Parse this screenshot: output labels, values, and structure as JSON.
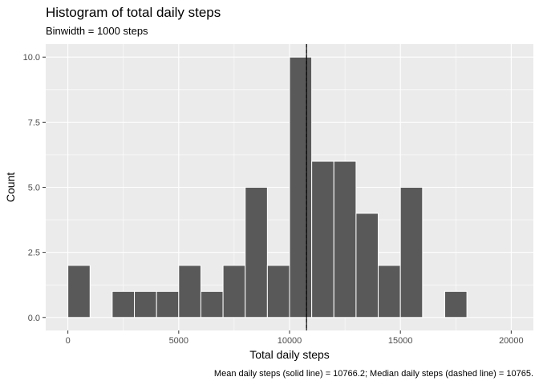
{
  "chart_data": {
    "type": "histogram",
    "title": "Histogram of total daily steps",
    "subtitle": "Binwidth = 1000 steps",
    "xlabel": "Total daily steps",
    "ylabel": "Count",
    "caption": "Mean daily steps (solid line) = 10766.2; Median daily steps (dashed line) = 10765.",
    "binwidth": 1000,
    "xlim": [
      -1000,
      21000
    ],
    "ylim": [
      -0.5,
      10.5
    ],
    "x_ticks": [
      0,
      5000,
      10000,
      15000,
      20000
    ],
    "x_tick_labels": [
      "0",
      "5000",
      "10000",
      "15000",
      "20000"
    ],
    "y_ticks": [
      0,
      2.5,
      5,
      7.5,
      10
    ],
    "y_tick_labels": [
      "0.0",
      "2.5",
      "5.0",
      "7.5",
      "10.0"
    ],
    "bins": [
      {
        "start": 0,
        "end": 1000,
        "count": 2
      },
      {
        "start": 1000,
        "end": 2000,
        "count": 0
      },
      {
        "start": 2000,
        "end": 3000,
        "count": 1
      },
      {
        "start": 3000,
        "end": 4000,
        "count": 1
      },
      {
        "start": 4000,
        "end": 5000,
        "count": 1
      },
      {
        "start": 5000,
        "end": 6000,
        "count": 2
      },
      {
        "start": 6000,
        "end": 7000,
        "count": 1
      },
      {
        "start": 7000,
        "end": 8000,
        "count": 2
      },
      {
        "start": 8000,
        "end": 9000,
        "count": 5
      },
      {
        "start": 9000,
        "end": 10000,
        "count": 2
      },
      {
        "start": 10000,
        "end": 11000,
        "count": 10
      },
      {
        "start": 11000,
        "end": 12000,
        "count": 6
      },
      {
        "start": 12000,
        "end": 13000,
        "count": 6
      },
      {
        "start": 13000,
        "end": 14000,
        "count": 4
      },
      {
        "start": 14000,
        "end": 15000,
        "count": 2
      },
      {
        "start": 15000,
        "end": 16000,
        "count": 5
      },
      {
        "start": 16000,
        "end": 17000,
        "count": 0
      },
      {
        "start": 17000,
        "end": 18000,
        "count": 1
      },
      {
        "start": 18000,
        "end": 19000,
        "count": 0
      },
      {
        "start": 19000,
        "end": 20000,
        "count": 0
      }
    ],
    "mean": 10766.2,
    "median": 10765,
    "grid": true,
    "colors": {
      "bar_fill": "#595959",
      "bar_outline": "#ffffff",
      "panel_background": "#ebebeb",
      "grid_major": "#ffffff",
      "reference_line": "#000000"
    }
  }
}
